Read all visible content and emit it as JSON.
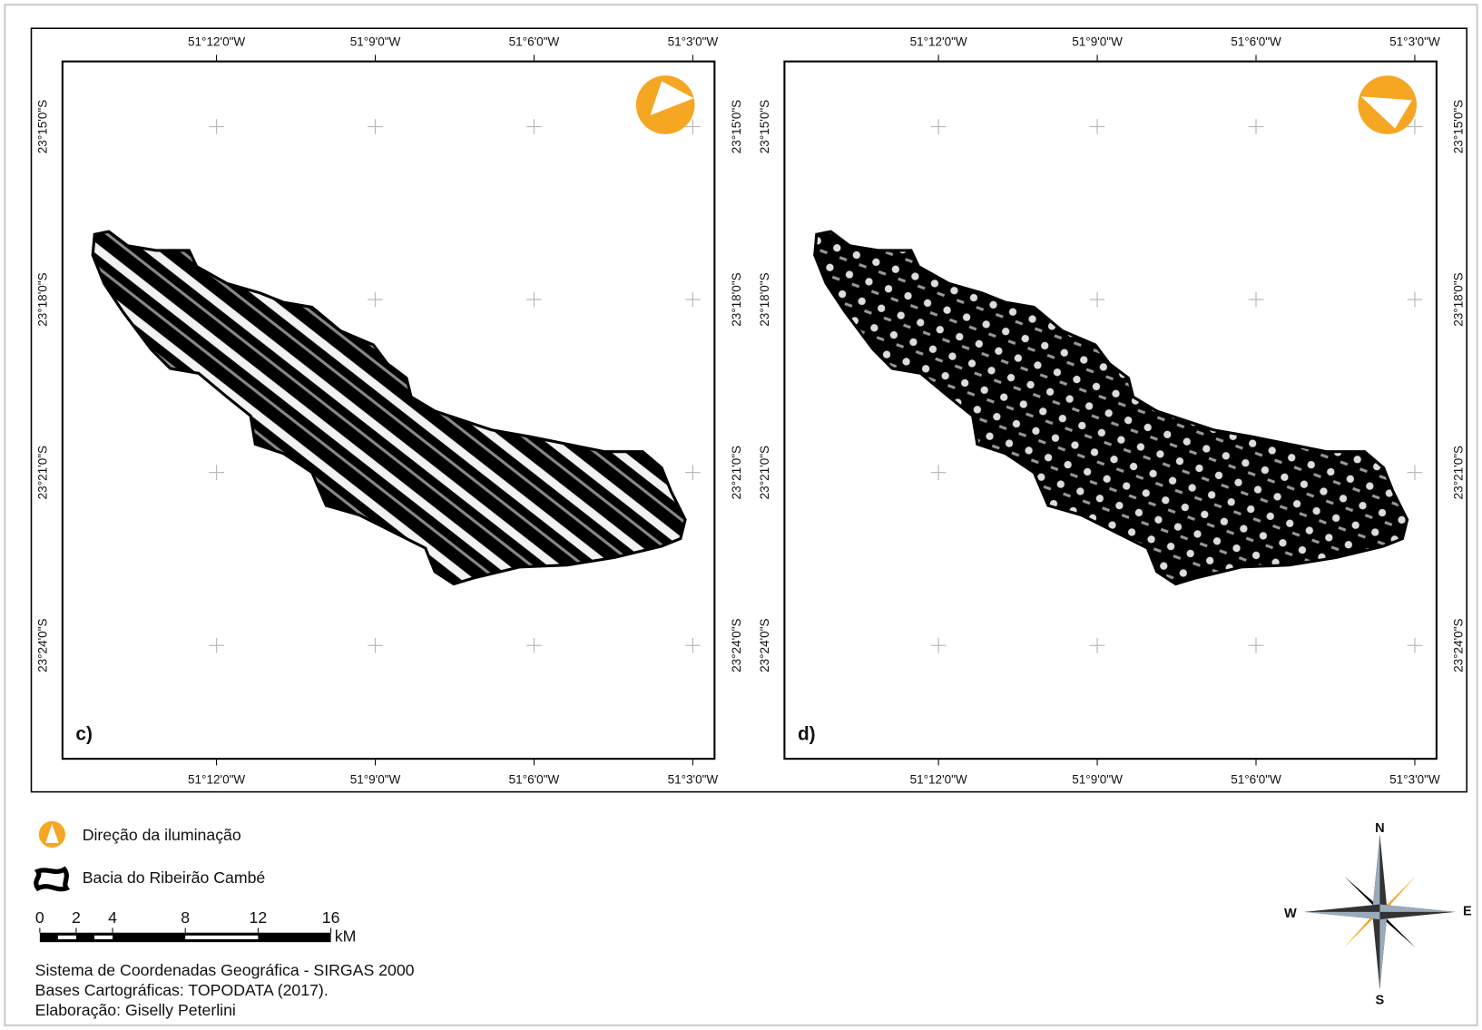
{
  "panels": [
    {
      "label": "c)"
    },
    {
      "label": "d)"
    }
  ],
  "longitude_labels": [
    "51°12'0\"W",
    "51°9'0\"W",
    "51°6'0\"W",
    "51°3'0\"W"
  ],
  "latitude_labels": [
    "23°15'0\"S",
    "23°18'0\"S",
    "23°21'0\"S",
    "23°24'0\"S"
  ],
  "legend": {
    "illumination": "Direção da iluminação",
    "basin": "Bacia do Ribeirão Cambé"
  },
  "scale_bar": {
    "ticks": [
      0,
      2,
      4,
      8,
      12,
      16
    ],
    "unit": "kM"
  },
  "compass": {
    "north": "N",
    "east": "E",
    "south": "S",
    "west": "W"
  },
  "credits": [
    "Sistema de Coordenadas Geográfica - SIRGAS 2000",
    "Bases Cartográficas:  TOPODATA (2017).",
    "Elaboração: Giselly Peterlini"
  ]
}
